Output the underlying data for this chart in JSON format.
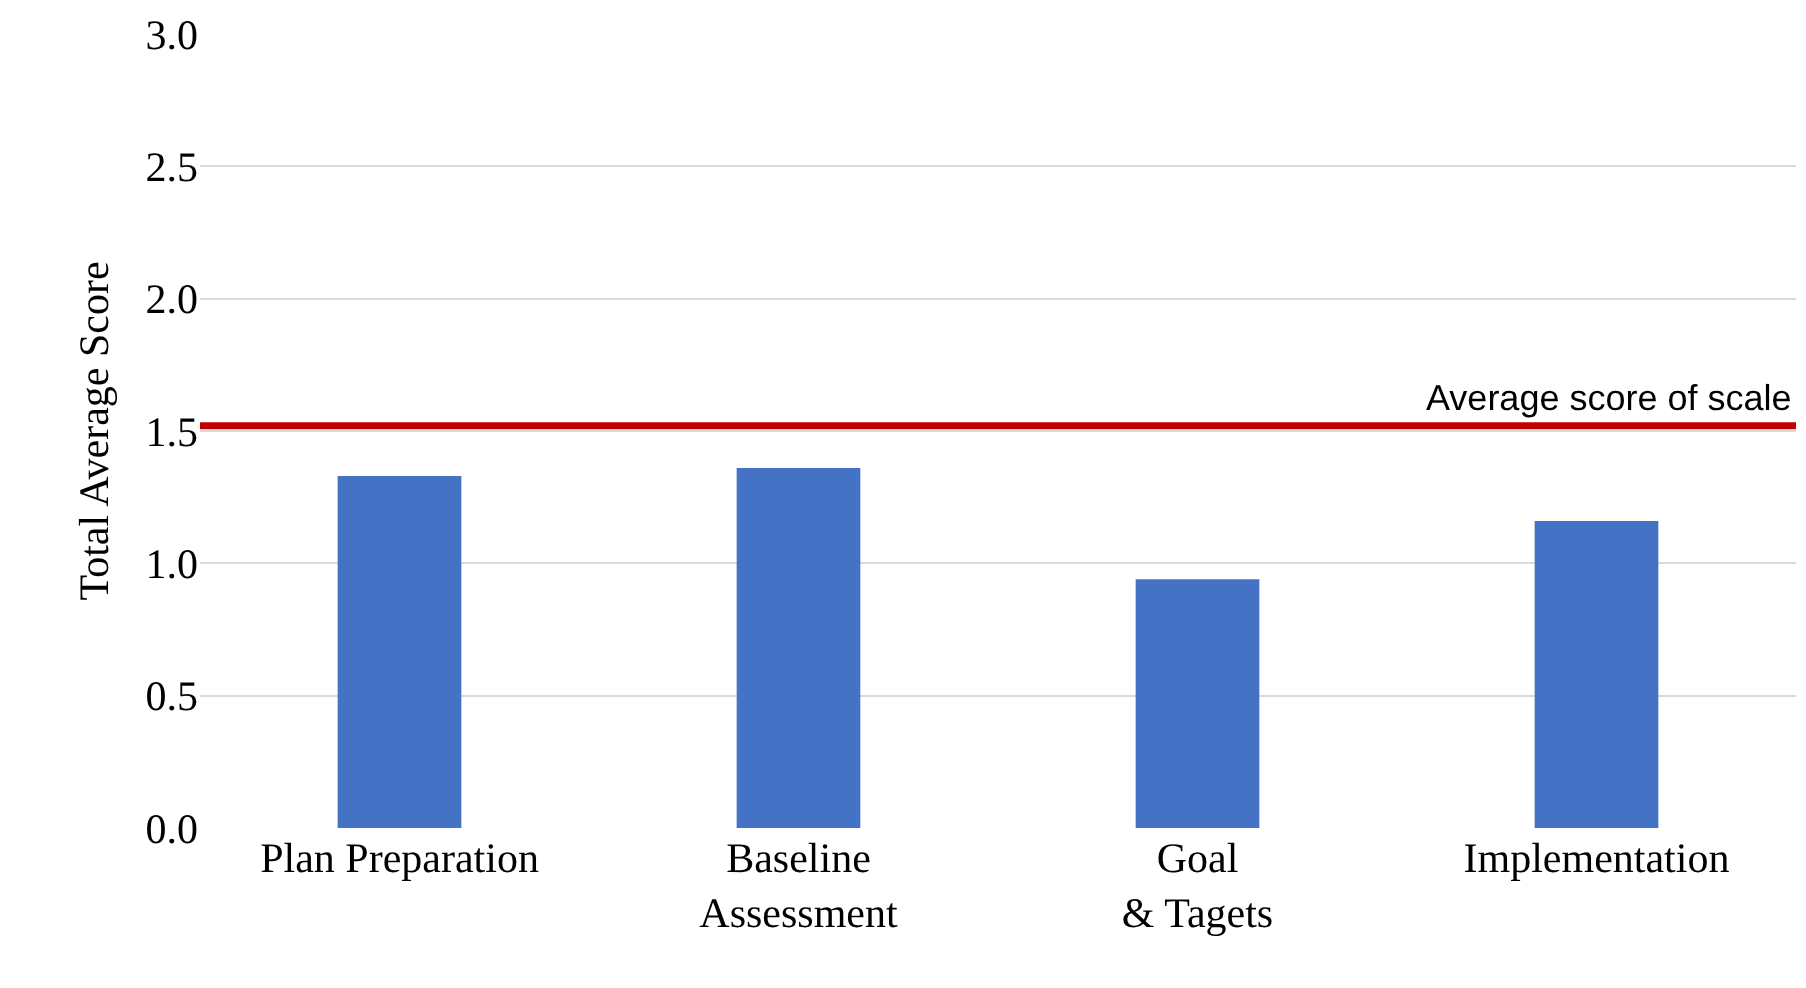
{
  "chart_data": {
    "type": "bar",
    "ylabel": "Total Average Score",
    "categories": [
      "Plan Preparation",
      "Baseline Assessment",
      "Goal & Tagets",
      "Implementation"
    ],
    "values": [
      1.33,
      1.36,
      0.94,
      1.16
    ],
    "color": "#4472c4",
    "ylim": [
      0,
      3
    ],
    "yticks": [
      {
        "value": 0,
        "label": "0.0"
      },
      {
        "value": 0.5,
        "label": "0.5"
      },
      {
        "value": 1,
        "label": "1.0"
      },
      {
        "value": 1.5,
        "label": "1.5"
      },
      {
        "value": 2,
        "label": "2.0"
      },
      {
        "value": 2.5,
        "label": "2.5"
      },
      {
        "value": 3,
        "label": "3.0"
      }
    ],
    "grid": "y",
    "ref_lines": [
      {
        "axis": "y",
        "value": 1.52,
        "label": "Average score of scale",
        "color": "#c00000"
      }
    ]
  }
}
